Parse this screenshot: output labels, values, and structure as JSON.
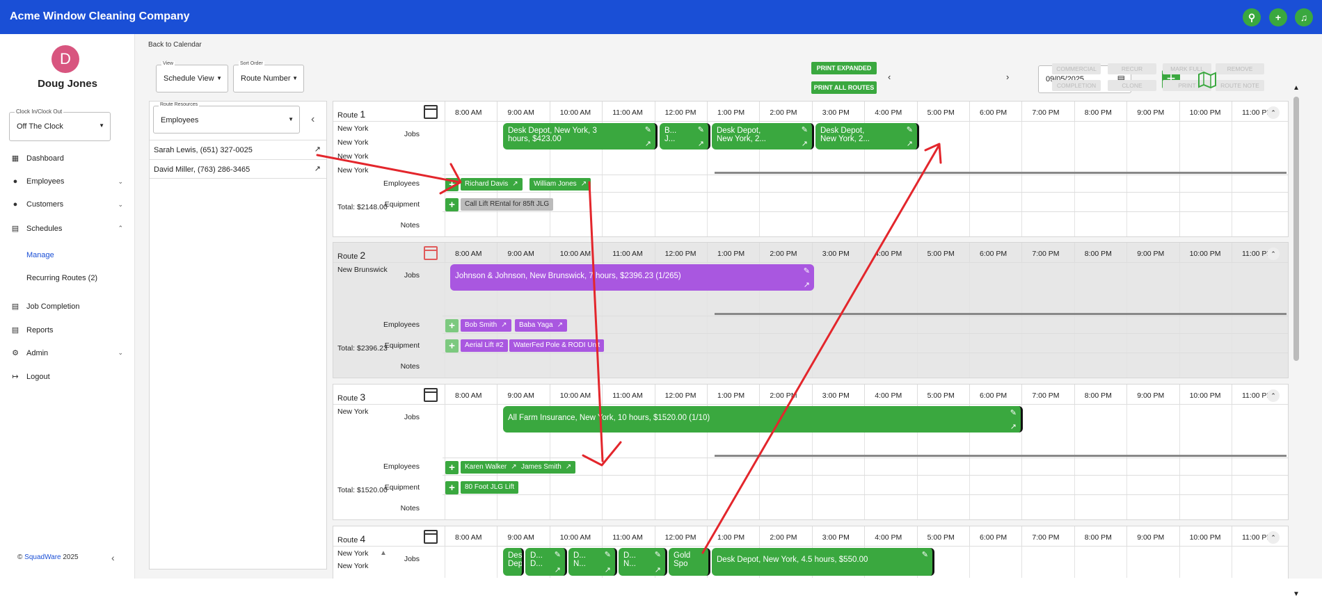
{
  "app": {
    "title": "Acme Window Cleaning Company",
    "icons": [
      "search-icon",
      "plus-icon",
      "bell-icon"
    ]
  },
  "user": {
    "initial": "D",
    "name": "Doug Jones"
  },
  "clock": {
    "label": "Clock In/Clock Out",
    "value": "Off The Clock"
  },
  "nav": {
    "dashboard": "Dashboard",
    "employees": "Employees",
    "customers": "Customers",
    "schedules": "Schedules",
    "manage": "Manage",
    "recurring": "Recurring Routes (2)",
    "job_completion": "Job Completion",
    "reports": "Reports",
    "admin": "Admin",
    "logout": "Logout"
  },
  "footer": {
    "copyright": "©",
    "brand": "SquadWare",
    "year": "2025"
  },
  "toolbar": {
    "back": "Back to Calendar",
    "view_label": "View",
    "view_value": "Schedule View",
    "sort_label": "Sort Order",
    "sort_value": "Route Number",
    "print_expanded": "PRINT EXPANDED",
    "print_all": "PRINT ALL ROUTES",
    "date": "09/05/2025",
    "commercial": "COMMERCIAL",
    "completion": "COMPLETION",
    "recur": "RECUR",
    "clone": "CLONE",
    "mark_full": "MARK FULL",
    "print": "PRINT",
    "remove": "REMOVE",
    "route_note": "ROUTE NOTE"
  },
  "resources": {
    "label": "Route Resources",
    "value": "Employees",
    "people": [
      "Sarah Lewis, (651) 327-0025",
      "David Miller, (763) 286-3465"
    ]
  },
  "hours": [
    "8:00 AM",
    "9:00 AM",
    "10:00 AM",
    "11:00 AM",
    "12:00 PM",
    "1:00 PM",
    "2:00 PM",
    "3:00 PM",
    "4:00 PM",
    "5:00 PM",
    "6:00 PM",
    "7:00 PM",
    "8:00 PM",
    "9:00 PM",
    "10:00 PM",
    "11:00 PM"
  ],
  "labels": {
    "route": "Route",
    "jobs": "Jobs",
    "employees": "Employees",
    "equipment": "Equipment",
    "notes": "Notes"
  },
  "routes": [
    {
      "num": "1",
      "cities": [
        "New York",
        "New York",
        "New York",
        "New York"
      ],
      "total": "Total: $2148.00",
      "jobs": [
        {
          "t1": "Desk Depot, New York, 3",
          "t2": "hours, $423.00"
        },
        {
          "t1": "B...",
          "t2": "J..."
        },
        {
          "t1": "Desk Depot,",
          "t2": "New York, 2..."
        },
        {
          "t1": "Desk Depot,",
          "t2": "New York, 2..."
        }
      ],
      "employees": [
        "Richard Davis",
        "William Jones"
      ],
      "equipment": [
        "Call Lift REntal for 85ft JLG"
      ]
    },
    {
      "num": "2",
      "cities": [
        "New Brunswick"
      ],
      "total": "Total: $2396.23",
      "jobs": [
        {
          "t1": "Johnson & Johnson, New Brunswick, 7 hours, $2396.23 (1/265)"
        }
      ],
      "employees": [
        "Bob Smith",
        "Baba Yaga"
      ],
      "equipment": [
        "Aerial Lift #2",
        "WaterFed Pole & RODI Unit"
      ]
    },
    {
      "num": "3",
      "cities": [
        "New York"
      ],
      "total": "Total: $1520.00",
      "jobs": [
        {
          "t1": "All Farm Insurance, New York, 10 hours, $1520.00 (1/10)"
        }
      ],
      "employees": [
        "Karen Walker",
        "James Smith"
      ],
      "equipment": [
        "80 Foot JLG Lift"
      ]
    },
    {
      "num": "4",
      "cities": [
        "New York",
        "New York"
      ],
      "jobs": [
        {
          "t1": "Desk",
          "t2": "Depo"
        },
        {
          "t1": "D...",
          "t2": "D..."
        },
        {
          "t1": "D...",
          "t2": "N..."
        },
        {
          "t1": "D...",
          "t2": "N..."
        },
        {
          "t1": "Gold",
          "t2": "Spo"
        },
        {
          "t1": "Desk Depot, New York, 4.5 hours, $550.00"
        }
      ]
    }
  ]
}
